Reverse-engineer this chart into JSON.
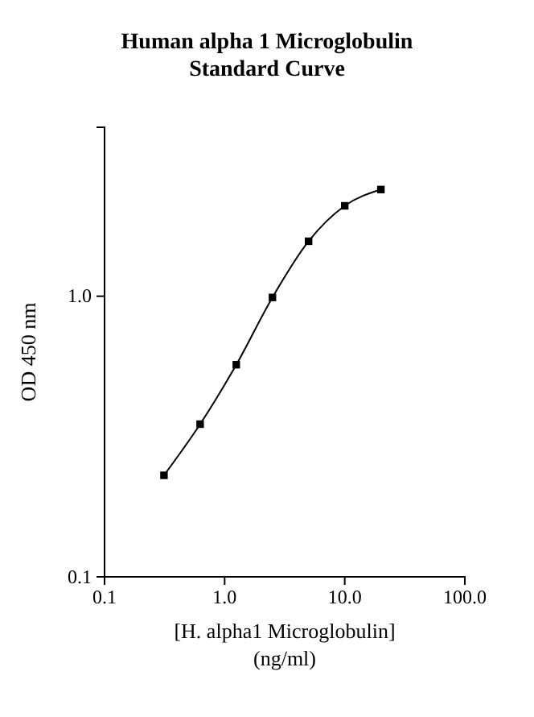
{
  "chart_data": {
    "type": "line",
    "title": "Human alpha 1 Microglobulin\nStandard Curve",
    "xlabel": "[H. alpha1 Microglobulin]\n(ng/ml)",
    "ylabel": "OD 450 nm",
    "x": [
      0.3125,
      0.625,
      1.25,
      2.5,
      5,
      10,
      20
    ],
    "series": [
      {
        "color": "#000000",
        "values": [
          0.23,
          0.35,
          0.57,
          0.99,
          1.57,
          2.1,
          2.4
        ]
      }
    ],
    "log": "xy",
    "xlim": [
      0.1,
      100
    ],
    "ylim": [
      0.1,
      4
    ],
    "xticks": [
      0.1,
      {
        "value": 1,
        "label": "1.0"
      },
      {
        "value": 10,
        "label": "10.0"
      },
      {
        "value": 100,
        "label": "100.0"
      }
    ],
    "yticks": [
      0.1,
      {
        "value": 1,
        "label": "1.0"
      }
    ],
    "marker": "square",
    "line_style": "solid",
    "grid": false
  }
}
